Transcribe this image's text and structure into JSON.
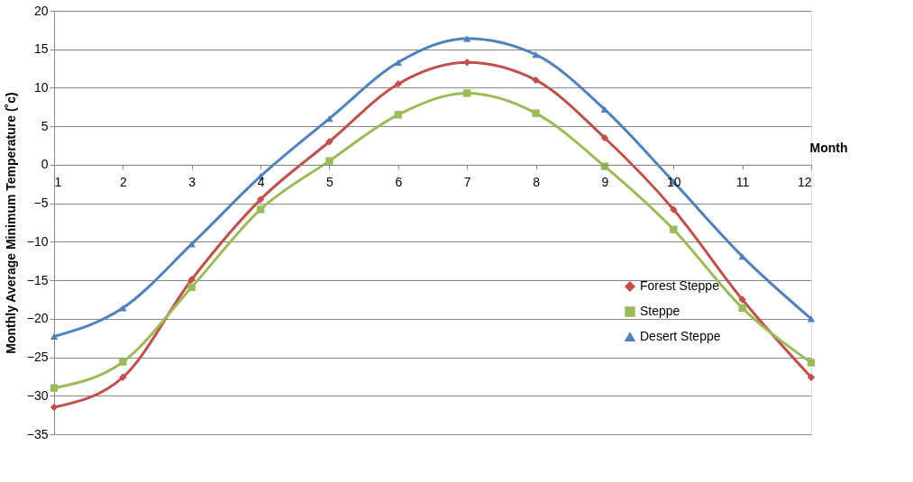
{
  "chart_data": {
    "type": "line",
    "ylabel": "Monthly Average Minimum Temperature (˚c)",
    "xlabel": "Month",
    "x": [
      1,
      2,
      3,
      4,
      5,
      6,
      7,
      8,
      9,
      10,
      11,
      12
    ],
    "xlim": [
      1,
      12
    ],
    "xticks": [
      1,
      2,
      3,
      4,
      5,
      6,
      7,
      8,
      9,
      10,
      11,
      12
    ],
    "ylim": [
      -35,
      20
    ],
    "yticks": [
      -35,
      -30,
      -25,
      -20,
      -15,
      -10,
      -5,
      0,
      5,
      10,
      15,
      20
    ],
    "grid": "y",
    "legend": "bottom right",
    "series": [
      {
        "name": "Forest Steppe",
        "color": "#c0504d",
        "marker": "diamond",
        "values": [
          -31.5,
          -27.6,
          -14.9,
          -4.5,
          3.0,
          10.5,
          13.3,
          11.0,
          3.5,
          -5.8,
          -17.5,
          -27.6
        ]
      },
      {
        "name": "Steppe",
        "color": "#9bbb59",
        "marker": "square",
        "values": [
          -29.0,
          -25.6,
          -15.9,
          -5.8,
          0.5,
          6.5,
          9.3,
          6.7,
          -0.2,
          -8.4,
          -18.6,
          -25.7
        ]
      },
      {
        "name": "Desert Steppe",
        "color": "#4f81bd",
        "marker": "triangle",
        "values": [
          -22.3,
          -18.6,
          -10.3,
          -1.5,
          6.0,
          13.3,
          16.4,
          14.3,
          7.2,
          -2.2,
          -11.9,
          -20.0
        ]
      }
    ]
  }
}
